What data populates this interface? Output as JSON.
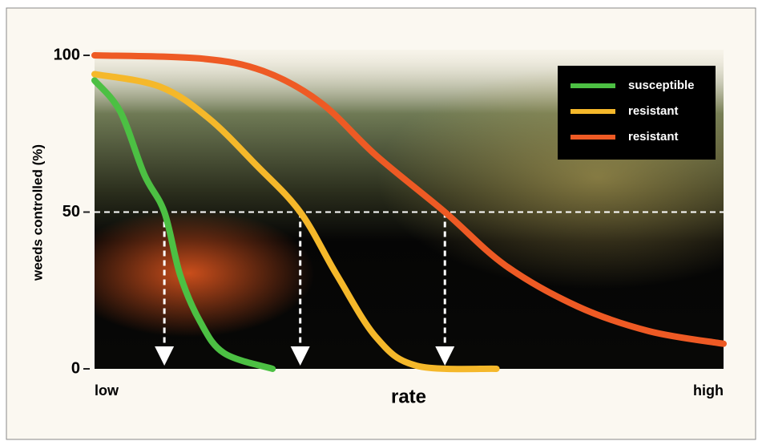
{
  "chart_data": {
    "type": "line",
    "y_label": "weeds controlled (%)",
    "x_label": "rate",
    "xlim": [
      0,
      100
    ],
    "xticks": [
      {
        "value": 0,
        "label": "low"
      },
      {
        "value": 100,
        "label": "high"
      }
    ],
    "ylim": [
      0,
      100
    ],
    "yticks": [
      0,
      50,
      100
    ],
    "grid_at": 50,
    "legend": "top-right",
    "series": [
      {
        "name": "susceptible",
        "color": "#4cc043",
        "x": [
          0,
          4.1,
          7.9,
          11.1,
          13.6,
          16.8,
          20.6,
          28.3
        ],
        "values": [
          92,
          82,
          62,
          50,
          30,
          15,
          5,
          0
        ]
      },
      {
        "name": "resistant",
        "color": "#f5b82a",
        "x": [
          0,
          10.4,
          18.1,
          25.7,
          32.7,
          38.5,
          44.8,
          51.2,
          63.9
        ],
        "values": [
          94,
          90,
          80,
          65,
          50,
          30,
          10,
          1,
          0
        ]
      },
      {
        "name": "resistant",
        "color": "#ee5a24",
        "x": [
          0,
          16.8,
          26.8,
          35.9,
          44.8,
          55.7,
          65.3,
          76.7,
          88.2,
          100
        ],
        "values": [
          100,
          99,
          95,
          85,
          68,
          50,
          33,
          20,
          12,
          8
        ]
      }
    ]
  }
}
